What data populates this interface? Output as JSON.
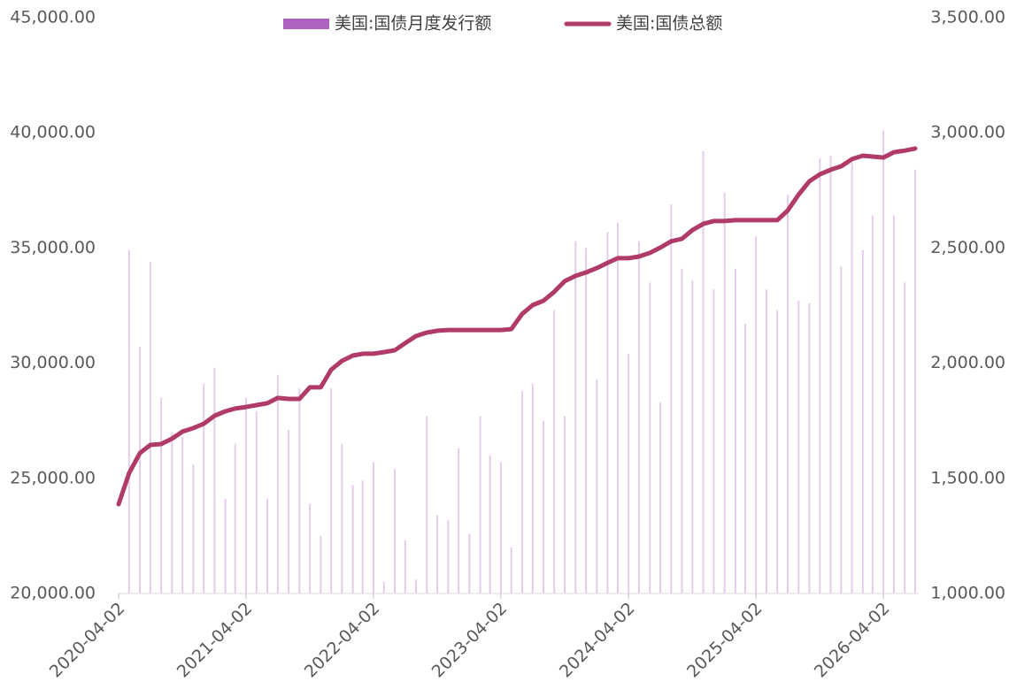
{
  "chart_data": {
    "type": "bar-line",
    "x": [
      "2020-04-02",
      "2020-05-02",
      "2020-06-02",
      "2020-07-02",
      "2020-08-02",
      "2020-09-02",
      "2020-10-02",
      "2020-11-02",
      "2020-12-02",
      "2021-01-02",
      "2021-02-02",
      "2021-03-02",
      "2021-04-02",
      "2021-05-02",
      "2021-06-02",
      "2021-07-02",
      "2021-08-02",
      "2021-09-02",
      "2021-10-02",
      "2021-11-02",
      "2021-12-02",
      "2022-01-02",
      "2022-02-02",
      "2022-03-02",
      "2022-04-02",
      "2022-05-02",
      "2022-06-02",
      "2022-07-02",
      "2022-08-02",
      "2022-09-02",
      "2022-10-02",
      "2022-11-02",
      "2022-12-02",
      "2023-01-02",
      "2023-02-02",
      "2023-03-02",
      "2023-04-02",
      "2023-05-02",
      "2023-06-02",
      "2023-07-02",
      "2023-08-02",
      "2023-09-02",
      "2023-10-02",
      "2023-11-02",
      "2023-12-02",
      "2024-01-02",
      "2024-02-02",
      "2024-03-02",
      "2024-04-02",
      "2024-05-02",
      "2024-06-02",
      "2024-07-02",
      "2024-08-02",
      "2024-09-02",
      "2024-10-02",
      "2024-11-02",
      "2024-12-02",
      "2025-01-02",
      "2025-02-02",
      "2025-03-02",
      "2025-04-02",
      "2025-05-02",
      "2025-06-02",
      "2025-07-02",
      "2025-08-02",
      "2025-09-02",
      "2025-10-02",
      "2025-11-02",
      "2025-12-02",
      "2026-01-02",
      "2026-02-02",
      "2026-03-02",
      "2026-04-02",
      "2026-05-02",
      "2026-06-02",
      "2026-07-02"
    ],
    "series": [
      {
        "name": "美国:国债月度发行额",
        "color": "#e6cceb",
        "axis": "y2",
        "values": [
          null,
          2490,
          2070,
          2440,
          1850,
          1700,
          1680,
          1560,
          1910,
          1980,
          1410,
          1650,
          1850,
          1790,
          1410,
          1950,
          1710,
          1890,
          1390,
          1250,
          1890,
          1650,
          1470,
          1490,
          1570,
          1050,
          1540,
          1230,
          1060,
          1770,
          1340,
          1320,
          1630,
          1260,
          1770,
          1600,
          1570,
          1200,
          1880,
          1910,
          1750,
          2230,
          1770,
          2530,
          2500,
          1930,
          2570,
          2610,
          2040,
          2530,
          2350,
          1830,
          2690,
          2410,
          2360,
          2920,
          2320,
          2740,
          2410,
          2170,
          2550,
          2320,
          2230,
          2730,
          2270,
          2260,
          2890,
          2900,
          2420,
          2870,
          2490,
          2640,
          3010,
          2640,
          2350,
          2840
        ]
      },
      {
        "name": "美国:国债总额",
        "color": "#b03a68",
        "values": [
          23880,
          25220,
          26100,
          26450,
          26490,
          26720,
          27030,
          27180,
          27370,
          27720,
          27910,
          28030,
          28100,
          28180,
          28260,
          28490,
          28450,
          28450,
          28950,
          28950,
          29720,
          30100,
          30330,
          30410,
          30410,
          30480,
          30560,
          30870,
          31180,
          31330,
          31410,
          31440,
          31440,
          31440,
          31440,
          31440,
          31440,
          31480,
          32140,
          32520,
          32710,
          33100,
          33560,
          33790,
          33940,
          34130,
          34360,
          34560,
          34560,
          34630,
          34790,
          35020,
          35290,
          35400,
          35780,
          36050,
          36170,
          36170,
          36210,
          36210,
          36210,
          36210,
          36210,
          36630,
          37320,
          37900,
          38200,
          38400,
          38550,
          38860,
          39010,
          38970,
          38930,
          39160,
          39230,
          39320
        ]
      }
    ],
    "xlim": [
      "2020-04-02",
      "2026-07-02"
    ],
    "xticks": [
      "2020-04-02",
      "2021-04-02",
      "2022-04-02",
      "2023-04-02",
      "2024-04-02",
      "2025-04-02",
      "2026-04-02"
    ],
    "ylim": [
      20000,
      45000
    ],
    "yticks": [
      {
        "value": 20000,
        "label": "20,000.00"
      },
      {
        "value": 25000,
        "label": "25,000.00"
      },
      {
        "value": 30000,
        "label": "30,000.00"
      },
      {
        "value": 35000,
        "label": "35,000.00"
      },
      {
        "value": 40000,
        "label": "40,000.00"
      },
      {
        "value": 45000,
        "label": "45,000.00"
      }
    ],
    "y2lim": [
      1000,
      3500
    ],
    "y2ticks": [
      {
        "value": 1000,
        "label": "1,000.00"
      },
      {
        "value": 1500,
        "label": "1,500.00"
      },
      {
        "value": 2000,
        "label": "2,000.00"
      },
      {
        "value": 2500,
        "label": "2,500.00"
      },
      {
        "value": 3000,
        "label": "3,000.00"
      },
      {
        "value": 3500,
        "label": "3,500.00"
      }
    ],
    "legend": "top"
  }
}
